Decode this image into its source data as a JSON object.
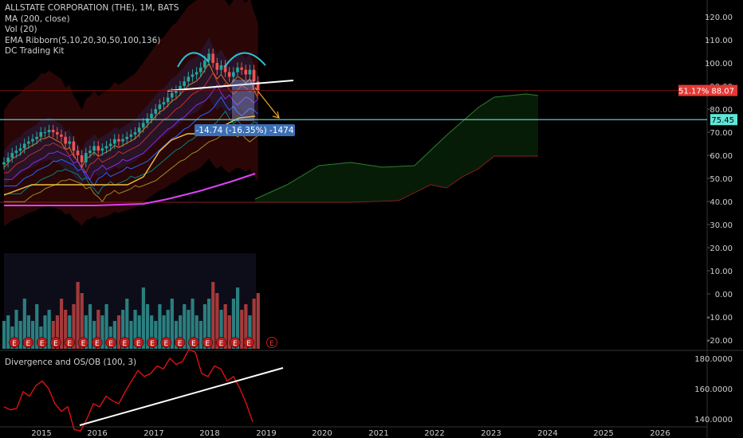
{
  "legend": {
    "title": "ALLSTATE CORPORATION (THE), 1M, BATS",
    "studies": [
      "MA (200, close)",
      "Vol (20)",
      "EMA Ribborn(5,10,20,30,50,100,136)",
      "DC Trading Kit"
    ]
  },
  "main_axis": {
    "labels": [
      "120.00",
      "110.00",
      "100.00",
      "90.00",
      "80.00",
      "70.00",
      "60.00",
      "50.00",
      "40.00",
      "30.00",
      "20.00",
      "10.00",
      "0.00",
      "-10.00",
      "-20.00"
    ],
    "values": [
      120,
      110,
      100,
      90,
      80,
      70,
      60,
      50,
      40,
      30,
      20,
      10,
      0,
      -10,
      -20
    ]
  },
  "price_tags": {
    "price": {
      "text": "51.17% 88.07",
      "value": 88.07,
      "color": "#e53935"
    },
    "level": {
      "text": "75.45",
      "value": 75.45,
      "color": "#5fe6d8"
    }
  },
  "measure_label": "-14.74 (-16.35%) -1474",
  "indicator": {
    "title": "Divergence and OS/OB (100, 3)",
    "axis_labels": [
      "180.0000",
      "160.0000",
      "140.0000"
    ],
    "axis_values": [
      180,
      160,
      140
    ]
  },
  "time_axis": {
    "labels": [
      "2015",
      "2016",
      "2017",
      "2018",
      "2019",
      "2020",
      "2021",
      "2022",
      "2023",
      "2024",
      "2025",
      "2026"
    ]
  },
  "earnings_marker": "E",
  "chart_data": {
    "type": "candlestick",
    "symbol": "ALLSTATE CORPORATION (THE)",
    "interval": "1M",
    "closes": [
      57,
      59,
      61,
      62,
      63,
      65,
      66,
      67,
      68,
      70,
      70,
      71,
      70,
      69,
      68,
      65,
      66,
      62,
      60,
      57,
      61,
      62,
      64,
      62,
      63,
      64,
      65,
      67,
      66,
      67,
      68,
      69,
      70,
      72,
      74,
      76,
      78,
      80,
      82,
      83,
      85,
      87,
      88,
      90,
      92,
      94,
      95,
      96,
      98,
      101,
      104,
      100,
      97,
      99,
      96,
      94,
      96,
      98,
      97,
      95,
      97,
      92,
      88
    ],
    "volume_bars": [
      5,
      6,
      4,
      7,
      5,
      9,
      6,
      5,
      8,
      4,
      6,
      7,
      5,
      6,
      9,
      7,
      6,
      8,
      12,
      10,
      6,
      8,
      5,
      7,
      6,
      8,
      4,
      5,
      6,
      7,
      9,
      5,
      7,
      6,
      11,
      8,
      6,
      5,
      8,
      6,
      7,
      9,
      5,
      6,
      8,
      7,
      9,
      6,
      5,
      8,
      9,
      12,
      10,
      7,
      8,
      6,
      9,
      11,
      7,
      8,
      6,
      9,
      10
    ],
    "ma200_range": [
      39,
      52
    ],
    "cloud": {
      "upper_peak": 86,
      "lower_end": 59
    },
    "divergence": [
      148,
      146,
      147,
      158,
      155,
      162,
      165,
      160,
      150,
      145,
      148,
      133,
      132,
      140,
      150,
      148,
      155,
      152,
      150,
      158,
      165,
      172,
      168,
      170,
      175,
      173,
      180,
      176,
      178,
      186,
      184,
      170,
      168,
      175,
      173,
      165,
      168,
      160,
      150,
      138
    ],
    "ylim_main": [
      -20,
      122
    ],
    "ylim_indicator": [
      130,
      185
    ]
  }
}
